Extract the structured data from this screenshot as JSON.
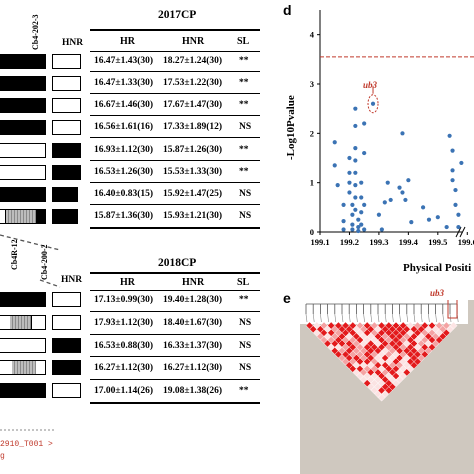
{
  "tables": [
    {
      "title": "2017CP",
      "columns": [
        "HR",
        "HNR",
        "SL"
      ],
      "hnr_label": "HNR",
      "rows": [
        {
          "hr": "16.47±1.43(30)",
          "hnr": "18.27±1.24(30)",
          "sl": "**"
        },
        {
          "hr": "16.47±1.33(30)",
          "hnr": "17.53±1.22(30)",
          "sl": "**"
        },
        {
          "hr": "16.67±1.46(30)",
          "hnr": "17.67±1.47(30)",
          "sl": "**"
        },
        {
          "hr": "16.56±1.61(16)",
          "hnr": "17.33±1.89(12)",
          "sl": "NS"
        },
        {
          "hr": "16.93±1.12(30)",
          "hnr": "15.87±1.26(30)",
          "sl": "**"
        },
        {
          "hr": "16.53±1.26(30)",
          "hnr": "15.53±1.33(30)",
          "sl": "**"
        },
        {
          "hr": "16.40±0.83(15)",
          "hnr": "15.92±1.47(25)",
          "sl": "NS"
        },
        {
          "hr": "15.87±1.36(30)",
          "hnr": "15.93±1.21(30)",
          "sl": "NS"
        }
      ]
    },
    {
      "title": "2018CP",
      "columns": [
        "HR",
        "HNR",
        "SL"
      ],
      "hnr_label": "HNR",
      "rows": [
        {
          "hr": "17.13±0.99(30)",
          "hnr": "19.40±1.28(30)",
          "sl": "**"
        },
        {
          "hr": "17.93±1.12(30)",
          "hnr": "18.40±1.67(30)",
          "sl": "NS"
        },
        {
          "hr": "16.53±0.88(30)",
          "hnr": "16.33±1.37(30)",
          "sl": "NS"
        },
        {
          "hr": "16.27±1.12(30)",
          "hnr": "16.27±1.12(30)",
          "sl": "NS"
        },
        {
          "hr": "17.00±1.14(26)",
          "hnr": "19.08±1.38(26)",
          "sl": "**"
        }
      ]
    }
  ],
  "left_labels": {
    "top_marker": "Cb4-202-3",
    "bottom_marker_1": "Cb4R-12",
    "bottom_marker_2": "Cb4-200-2",
    "gene_id": "2910_T001 >"
  },
  "panel_d": {
    "letter": "d",
    "annotation": "ub3",
    "xlabel": "Physical Positi",
    "ylabel": "-Log10Pvalue"
  },
  "panel_e": {
    "letter": "e",
    "annotation": "ub3"
  },
  "colors": {
    "scatter": "#3b73b4",
    "threshold": "#c0392b",
    "ld_red": "#e31a1c"
  },
  "chart_data": {
    "type": "scatter",
    "xlabel": "Physical Positi",
    "ylabel": "-Log10Pvalue",
    "xlim": [
      199.1,
      199.65
    ],
    "ylim": [
      0,
      4.5
    ],
    "x_ticks": [
      199.1,
      199.2,
      199.3,
      199.4,
      199.5,
      199.6
    ],
    "y_ticks": [
      0,
      1,
      2,
      3,
      4
    ],
    "threshold": 3.55,
    "highlight": {
      "label": "ub3",
      "x": 199.28,
      "y": 2.6
    },
    "points": [
      [
        199.15,
        1.82
      ],
      [
        199.15,
        1.35
      ],
      [
        199.16,
        0.95
      ],
      [
        199.18,
        0.55
      ],
      [
        199.18,
        0.22
      ],
      [
        199.18,
        0.05
      ],
      [
        199.2,
        1.5
      ],
      [
        199.2,
        1.2
      ],
      [
        199.2,
        1.0
      ],
      [
        199.2,
        0.8
      ],
      [
        199.21,
        0.55
      ],
      [
        199.21,
        0.35
      ],
      [
        199.21,
        0.15
      ],
      [
        199.21,
        0.05
      ],
      [
        199.22,
        2.5
      ],
      [
        199.22,
        2.15
      ],
      [
        199.22,
        1.7
      ],
      [
        199.22,
        1.45
      ],
      [
        199.22,
        1.2
      ],
      [
        199.22,
        0.95
      ],
      [
        199.22,
        0.7
      ],
      [
        199.22,
        0.45
      ],
      [
        199.23,
        0.25
      ],
      [
        199.23,
        0.1
      ],
      [
        199.23,
        0.02
      ],
      [
        199.24,
        1.0
      ],
      [
        199.24,
        0.7
      ],
      [
        199.24,
        0.4
      ],
      [
        199.24,
        0.15
      ],
      [
        199.25,
        2.2
      ],
      [
        199.25,
        1.6
      ],
      [
        199.25,
        0.55
      ],
      [
        199.25,
        0.05
      ],
      [
        199.28,
        2.6
      ],
      [
        199.3,
        0.35
      ],
      [
        199.31,
        0.05
      ],
      [
        199.32,
        0.6
      ],
      [
        199.33,
        1.0
      ],
      [
        199.34,
        0.65
      ],
      [
        199.37,
        0.9
      ],
      [
        199.38,
        2.0
      ],
      [
        199.38,
        0.8
      ],
      [
        199.39,
        0.65
      ],
      [
        199.4,
        1.05
      ],
      [
        199.41,
        0.2
      ],
      [
        199.45,
        0.5
      ],
      [
        199.47,
        0.25
      ],
      [
        199.5,
        0.3
      ],
      [
        199.53,
        0.1
      ],
      [
        199.54,
        1.95
      ],
      [
        199.55,
        1.65
      ],
      [
        199.55,
        1.25
      ],
      [
        199.55,
        1.05
      ],
      [
        199.56,
        0.85
      ],
      [
        199.56,
        0.55
      ],
      [
        199.57,
        0.35
      ],
      [
        199.57,
        0.1
      ],
      [
        199.58,
        1.4
      ]
    ]
  }
}
